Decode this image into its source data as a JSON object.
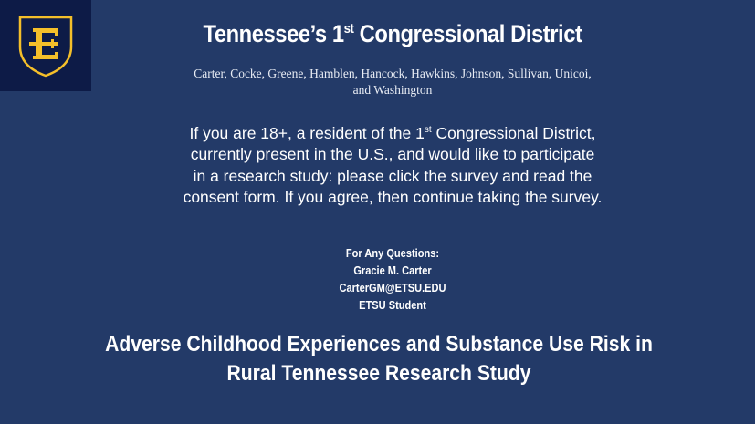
{
  "logo": {
    "letter": "E",
    "colors": {
      "background": "#0d1b47",
      "gold": "#f4bf2a"
    }
  },
  "header": {
    "title_pre": "Tennessee’s 1",
    "title_sup": "st",
    "title_post": " Congressional District"
  },
  "counties": {
    "line1": "Carter, Cocke, Greene, Hamblen, Hancock, Hawkins, Johnson, Sullivan, Unicoi,",
    "line2": "and Washington"
  },
  "body": {
    "part1": "If you are 18+, a resident of the 1",
    "sup": "st",
    "part2": " Congressional District, currently present in the U.S., and would like to participate in a research study: please click the survey and read the consent form. If you agree, then continue taking the survey."
  },
  "contact": {
    "heading": "For Any Questions:",
    "name": "Gracie M. Carter",
    "email": "CarterGM@ETSU.EDU",
    "role": "ETSU Student"
  },
  "study": {
    "line1": "Adverse Childhood Experiences and Substance Use Risk in",
    "line2": "Rural Tennessee Research Study"
  },
  "colors": {
    "background": "#233a68",
    "text": "#ffffff"
  }
}
